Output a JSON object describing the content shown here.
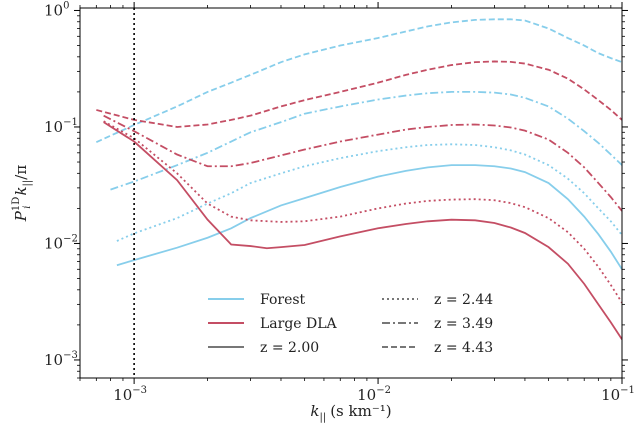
{
  "chart_data": {
    "type": "line",
    "xlabel_main": "k",
    "xlabel_sub": "||",
    "xlabel_unit": "(s km⁻¹)",
    "ylabel_main": "P",
    "ylabel_sub": "i",
    "ylabel_sup": "1D",
    "ylabel_rest": "k",
    "ylabel_rest_sub": "||",
    "ylabel_tail": "/π",
    "x_scale": "log",
    "y_scale": "log",
    "xlim": [
      0.0006,
      0.1
    ],
    "ylim": [
      0.0007,
      1.05
    ],
    "x_ticks": [
      {
        "value": 0.001,
        "base": "10",
        "exp": "−3"
      },
      {
        "value": 0.01,
        "base": "10",
        "exp": "−2"
      },
      {
        "value": 0.1,
        "base": "10",
        "exp": "−1"
      }
    ],
    "y_ticks": [
      {
        "value": 0.001,
        "base": "10",
        "exp": "−3"
      },
      {
        "value": 0.01,
        "base": "10",
        "exp": "−2"
      },
      {
        "value": 0.1,
        "base": "10",
        "exp": "−1"
      },
      {
        "value": 1,
        "base": "10",
        "exp": "0"
      }
    ],
    "vertical_line": {
      "x": 0.001,
      "style": "dotted",
      "color": "#000000"
    },
    "colors": {
      "forest": "#87ceeb",
      "large_dla": "#c44e64",
      "neutral": "#777777"
    },
    "legend": {
      "placement": "lower-center",
      "components": [
        {
          "label": "Forest",
          "kind": "color",
          "color": "#87ceeb"
        },
        {
          "label": "Large DLA",
          "kind": "color",
          "color": "#c44e64"
        },
        {
          "label": "z = 2.00",
          "kind": "linestyle",
          "dash": "solid"
        }
      ],
      "styles": [
        {
          "label": "z = 2.44",
          "kind": "linestyle",
          "dash": "dotted"
        },
        {
          "label": "z = 3.49",
          "kind": "linestyle",
          "dash": "dashdot"
        },
        {
          "label": "z = 4.43",
          "kind": "linestyle",
          "dash": "dashed"
        }
      ]
    },
    "series": [
      {
        "component": "Forest",
        "z": "2.00",
        "dash": "solid",
        "color": "#87ceeb",
        "x": [
          0.00085,
          0.001,
          0.0015,
          0.002,
          0.0025,
          0.003,
          0.004,
          0.005,
          0.007,
          0.01,
          0.013,
          0.016,
          0.02,
          0.025,
          0.03,
          0.035,
          0.04,
          0.05,
          0.06,
          0.07,
          0.08,
          0.09,
          0.1
        ],
        "y": [
          0.0065,
          0.0072,
          0.0092,
          0.0112,
          0.0135,
          0.0165,
          0.0212,
          0.0245,
          0.0305,
          0.0375,
          0.042,
          0.045,
          0.047,
          0.047,
          0.046,
          0.044,
          0.041,
          0.033,
          0.024,
          0.017,
          0.012,
          0.0085,
          0.006
        ]
      },
      {
        "component": "Forest",
        "z": "2.44",
        "dash": "dotted",
        "color": "#87ceeb",
        "x": [
          0.00085,
          0.001,
          0.0015,
          0.002,
          0.0025,
          0.003,
          0.004,
          0.005,
          0.007,
          0.01,
          0.013,
          0.016,
          0.02,
          0.025,
          0.03,
          0.035,
          0.04,
          0.05,
          0.06,
          0.07,
          0.08,
          0.09,
          0.1
        ],
        "y": [
          0.0105,
          0.0122,
          0.0165,
          0.022,
          0.027,
          0.033,
          0.04,
          0.046,
          0.054,
          0.062,
          0.067,
          0.07,
          0.071,
          0.07,
          0.067,
          0.063,
          0.058,
          0.047,
          0.036,
          0.027,
          0.02,
          0.0155,
          0.0118
        ]
      },
      {
        "component": "Forest",
        "z": "3.49",
        "dash": "dashdot",
        "color": "#87ceeb",
        "x": [
          0.0008,
          0.001,
          0.0015,
          0.002,
          0.0025,
          0.003,
          0.004,
          0.005,
          0.007,
          0.01,
          0.013,
          0.016,
          0.02,
          0.025,
          0.03,
          0.035,
          0.04,
          0.05,
          0.06,
          0.07,
          0.08,
          0.09,
          0.1
        ],
        "y": [
          0.029,
          0.034,
          0.047,
          0.06,
          0.075,
          0.09,
          0.11,
          0.13,
          0.15,
          0.172,
          0.186,
          0.195,
          0.2,
          0.2,
          0.197,
          0.19,
          0.178,
          0.15,
          0.118,
          0.092,
          0.073,
          0.058,
          0.047
        ]
      },
      {
        "component": "Forest",
        "z": "4.43",
        "dash": "dashed",
        "color": "#87ceeb",
        "x": [
          0.0007,
          0.001,
          0.0015,
          0.002,
          0.0025,
          0.003,
          0.004,
          0.005,
          0.007,
          0.01,
          0.013,
          0.016,
          0.02,
          0.025,
          0.03,
          0.035,
          0.04,
          0.05,
          0.06,
          0.07,
          0.08,
          0.09,
          0.1
        ],
        "y": [
          0.074,
          0.104,
          0.15,
          0.2,
          0.24,
          0.28,
          0.36,
          0.42,
          0.5,
          0.58,
          0.66,
          0.73,
          0.79,
          0.83,
          0.84,
          0.84,
          0.82,
          0.7,
          0.58,
          0.5,
          0.43,
          0.39,
          0.36
        ]
      },
      {
        "component": "Large DLA",
        "z": "2.00",
        "dash": "solid",
        "color": "#c44e64",
        "x": [
          0.00075,
          0.001,
          0.0015,
          0.002,
          0.0025,
          0.003,
          0.0035,
          0.004,
          0.005,
          0.007,
          0.01,
          0.013,
          0.016,
          0.02,
          0.025,
          0.03,
          0.035,
          0.04,
          0.05,
          0.06,
          0.07,
          0.08,
          0.09,
          0.1
        ],
        "y": [
          0.11,
          0.075,
          0.035,
          0.016,
          0.0098,
          0.0095,
          0.0091,
          0.0093,
          0.0097,
          0.0115,
          0.0135,
          0.0147,
          0.0155,
          0.016,
          0.0158,
          0.015,
          0.0137,
          0.0123,
          0.0093,
          0.0067,
          0.0045,
          0.003,
          0.0021,
          0.0015
        ]
      },
      {
        "component": "Large DLA",
        "z": "2.44",
        "dash": "dotted",
        "color": "#c44e64",
        "x": [
          0.00075,
          0.001,
          0.0015,
          0.002,
          0.0025,
          0.003,
          0.004,
          0.005,
          0.007,
          0.01,
          0.013,
          0.016,
          0.02,
          0.025,
          0.03,
          0.035,
          0.04,
          0.05,
          0.06,
          0.07,
          0.08,
          0.09,
          0.1
        ],
        "y": [
          0.112,
          0.08,
          0.04,
          0.022,
          0.017,
          0.0158,
          0.0153,
          0.0155,
          0.017,
          0.02,
          0.022,
          0.0232,
          0.0238,
          0.024,
          0.0235,
          0.0222,
          0.0205,
          0.0165,
          0.0125,
          0.009,
          0.0063,
          0.0044,
          0.0031
        ]
      },
      {
        "component": "Large DLA",
        "z": "3.49",
        "dash": "dashdot",
        "color": "#c44e64",
        "x": [
          0.00075,
          0.001,
          0.0015,
          0.002,
          0.0025,
          0.003,
          0.004,
          0.005,
          0.007,
          0.01,
          0.013,
          0.016,
          0.02,
          0.025,
          0.03,
          0.035,
          0.04,
          0.05,
          0.06,
          0.07,
          0.08,
          0.09,
          0.1
        ],
        "y": [
          0.125,
          0.092,
          0.058,
          0.046,
          0.046,
          0.049,
          0.057,
          0.064,
          0.075,
          0.086,
          0.095,
          0.1,
          0.104,
          0.105,
          0.103,
          0.099,
          0.093,
          0.078,
          0.06,
          0.045,
          0.033,
          0.025,
          0.019
        ]
      },
      {
        "component": "Large DLA",
        "z": "4.43",
        "dash": "dashed",
        "color": "#c44e64",
        "x": [
          0.0007,
          0.001,
          0.0015,
          0.002,
          0.0025,
          0.003,
          0.004,
          0.005,
          0.007,
          0.01,
          0.013,
          0.016,
          0.02,
          0.025,
          0.03,
          0.035,
          0.04,
          0.05,
          0.06,
          0.07,
          0.08,
          0.09,
          0.1
        ],
        "y": [
          0.14,
          0.115,
          0.1,
          0.105,
          0.115,
          0.125,
          0.15,
          0.17,
          0.2,
          0.24,
          0.28,
          0.31,
          0.34,
          0.36,
          0.365,
          0.362,
          0.35,
          0.31,
          0.26,
          0.21,
          0.17,
          0.14,
          0.115
        ]
      }
    ]
  }
}
